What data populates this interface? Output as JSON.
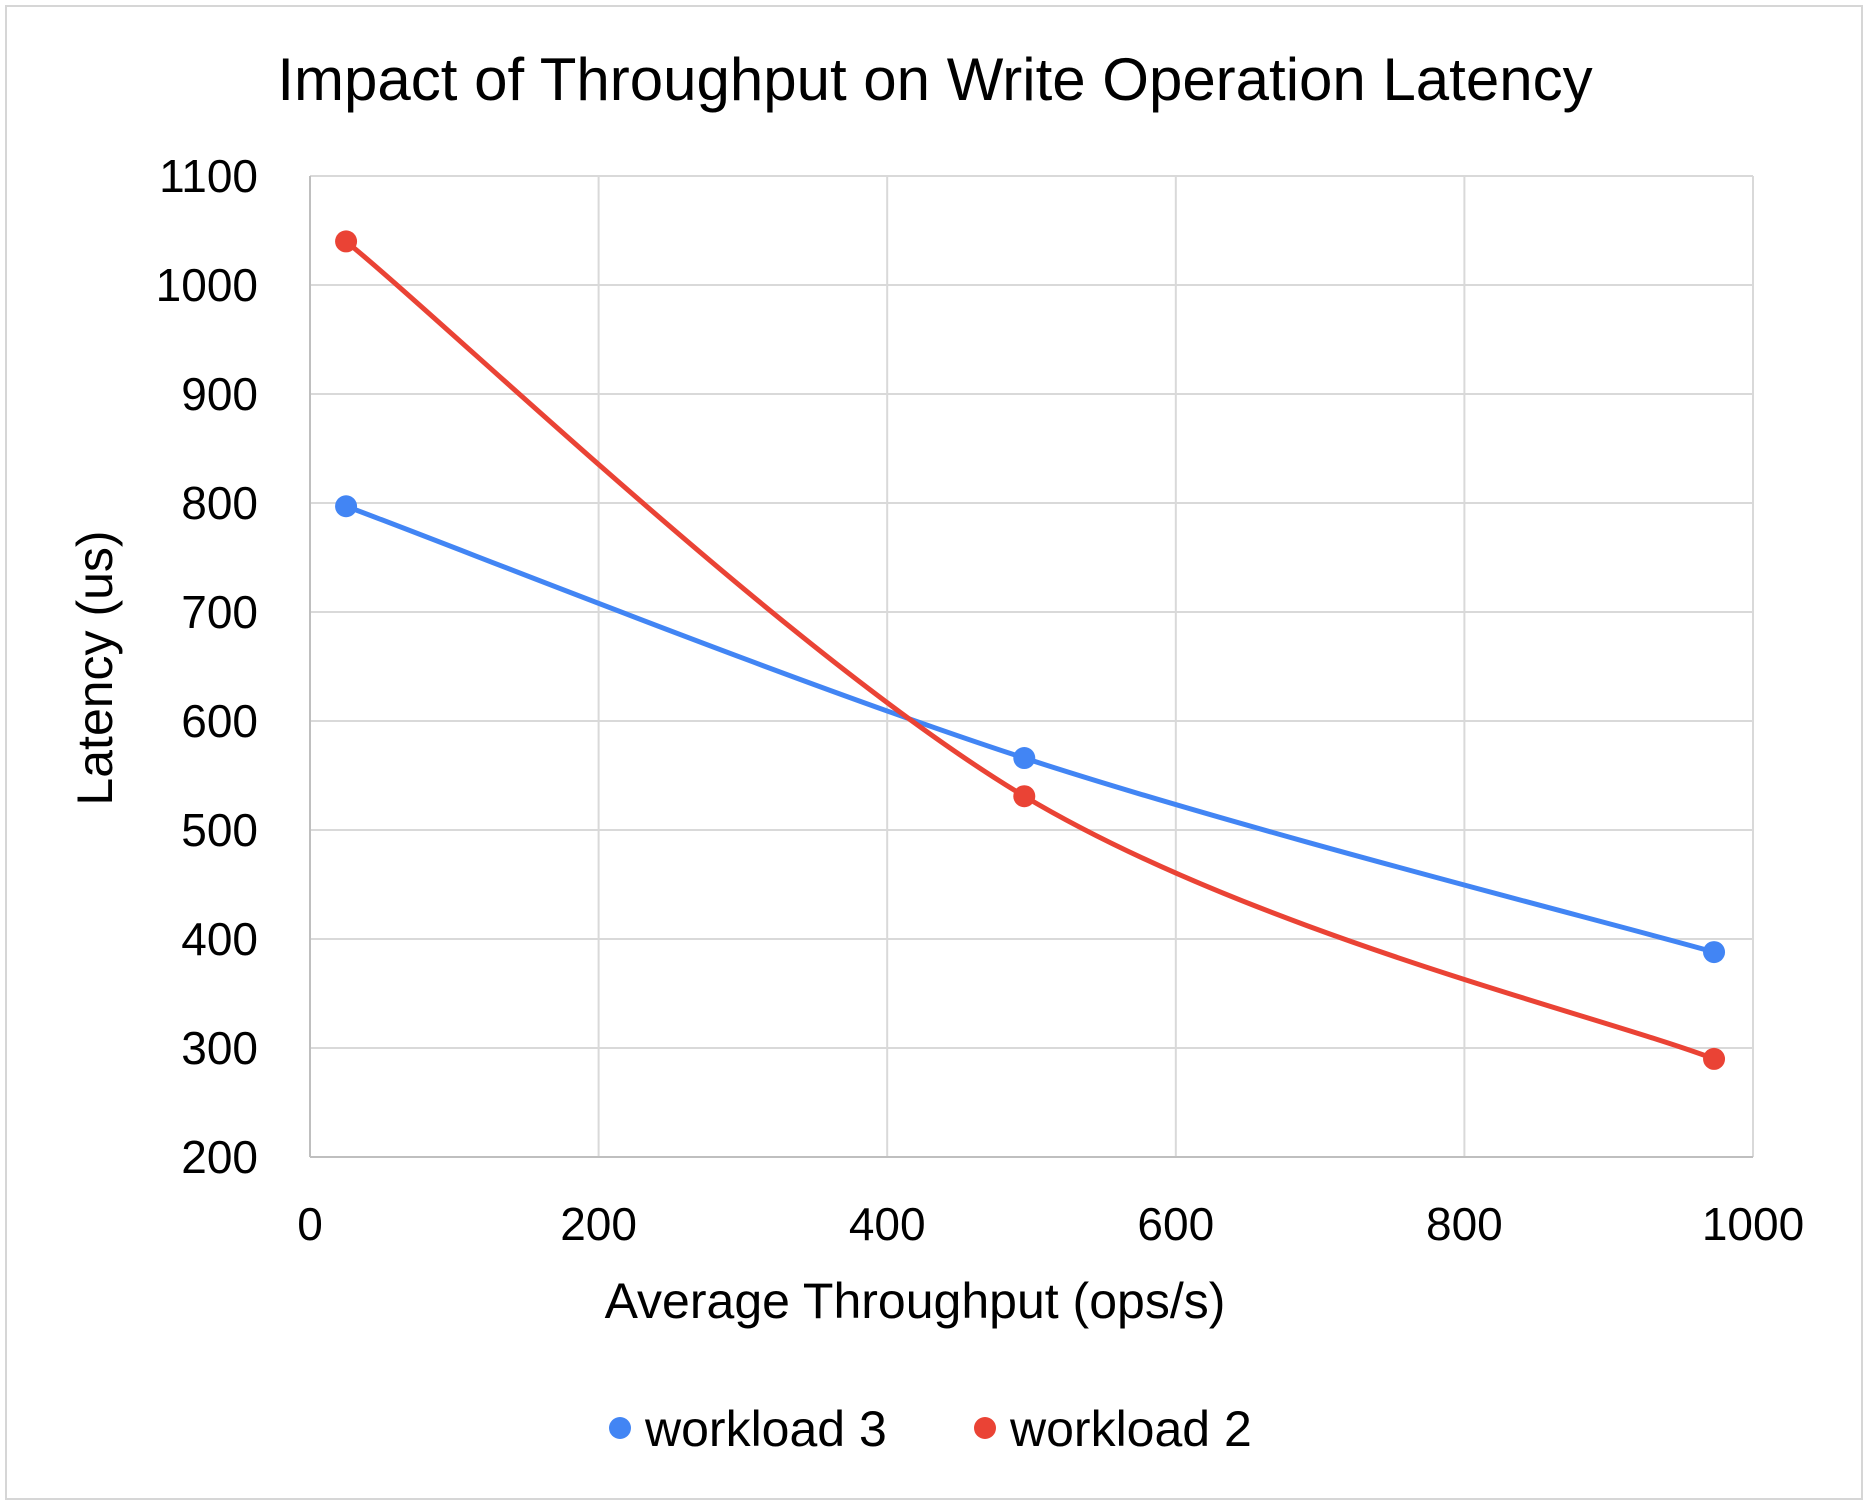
{
  "chart_data": {
    "type": "line",
    "title": "Impact of Throughput on Write Operation Latency",
    "xlabel": "Average Throughput (ops/s)",
    "ylabel": "Latency (us)",
    "xlim": [
      0,
      1000
    ],
    "ylim": [
      200,
      1100
    ],
    "xticks": [
      "0",
      "200",
      "400",
      "600",
      "800",
      "1000"
    ],
    "yticks": [
      "200",
      "300",
      "400",
      "500",
      "600",
      "700",
      "800",
      "900",
      "1000",
      "1100"
    ],
    "grid": true,
    "legend_position": "bottom",
    "smooth": true,
    "series": [
      {
        "name": "workload 3",
        "color": "#4285f4",
        "x": [
          25,
          495,
          973
        ],
        "y": [
          797,
          566,
          388
        ]
      },
      {
        "name": "workload 2",
        "color": "#ea4335",
        "x": [
          25,
          495,
          973
        ],
        "y": [
          1040,
          531,
          290
        ]
      }
    ]
  }
}
